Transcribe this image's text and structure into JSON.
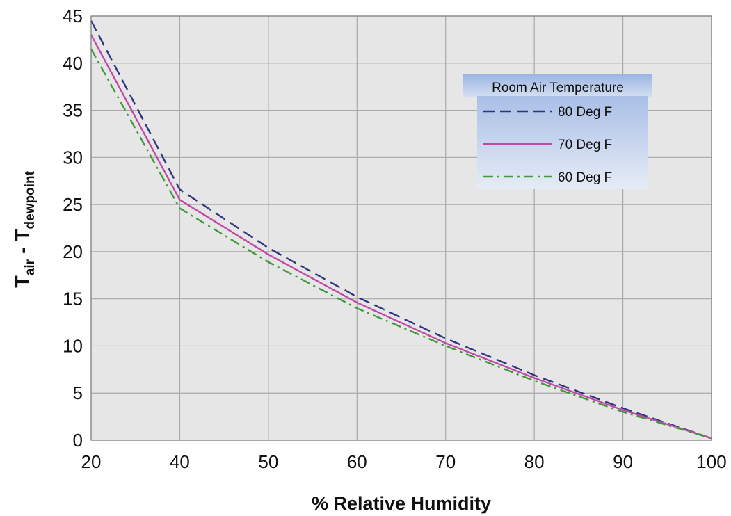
{
  "chart_data": {
    "type": "line",
    "title": "",
    "xlabel": "% Relative Humidity",
    "ylabel": {
      "main": "T",
      "sub1": "air",
      "sep": " - T",
      "sub2": "dewpoint"
    },
    "x": [
      20,
      40,
      50,
      60,
      70,
      80,
      90,
      100
    ],
    "xticks": [
      20,
      40,
      50,
      60,
      70,
      80,
      90,
      100
    ],
    "yticks": [
      0,
      5,
      10,
      15,
      20,
      25,
      30,
      35,
      40,
      45
    ],
    "ylim": [
      0,
      45
    ],
    "grid": true,
    "legend": {
      "title": "Room Air Temperature",
      "placement": "top-right"
    },
    "series": [
      {
        "name": "80 Deg F",
        "values": [
          44.5,
          26.6,
          20.4,
          15.2,
          10.8,
          6.9,
          3.4,
          0.2
        ],
        "color": "#2e3582",
        "dash": "dashed"
      },
      {
        "name": "70 Deg F",
        "values": [
          43.0,
          25.5,
          19.7,
          14.6,
          10.3,
          6.6,
          3.2,
          0.2
        ],
        "color": "#c04aa6",
        "dash": "solid"
      },
      {
        "name": "60 Deg F",
        "values": [
          41.5,
          24.6,
          18.9,
          14.0,
          10.0,
          6.3,
          3.0,
          0.2
        ],
        "color": "#3e9a3a",
        "dash": "dashdot"
      }
    ],
    "colors": {
      "plot_background": "#e6e6e6",
      "grid": "#a9a9a9",
      "legend_gradient_top": "#a9bfe6",
      "legend_gradient_bottom": "#e6ecf6"
    }
  }
}
